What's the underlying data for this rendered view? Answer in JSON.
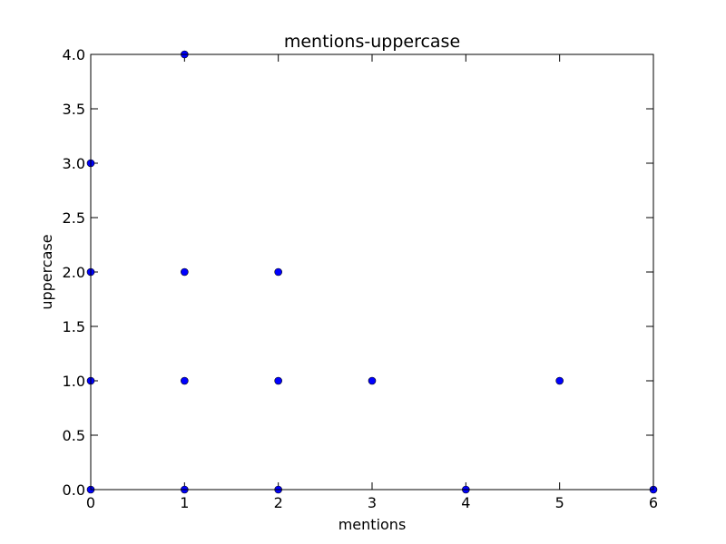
{
  "chart_data": {
    "type": "scatter",
    "title": "mentions-uppercase",
    "xlabel": "mentions",
    "ylabel": "uppercase",
    "xlim": [
      0,
      6
    ],
    "ylim": [
      0,
      4
    ],
    "xticks": [
      "0",
      "1",
      "2",
      "3",
      "4",
      "5",
      "6"
    ],
    "yticks": [
      "0.0",
      "0.5",
      "1.0",
      "1.5",
      "2.0",
      "2.5",
      "3.0",
      "3.5",
      "4.0"
    ],
    "grid": false,
    "legend": "none",
    "marker_color": "#0000ff",
    "marker_edge_color": "#000000",
    "points": [
      {
        "x": 0,
        "y": 0
      },
      {
        "x": 0,
        "y": 1
      },
      {
        "x": 0,
        "y": 2
      },
      {
        "x": 0,
        "y": 3
      },
      {
        "x": 1,
        "y": 0
      },
      {
        "x": 1,
        "y": 1
      },
      {
        "x": 1,
        "y": 2
      },
      {
        "x": 1,
        "y": 4
      },
      {
        "x": 2,
        "y": 0
      },
      {
        "x": 2,
        "y": 1
      },
      {
        "x": 2,
        "y": 2
      },
      {
        "x": 3,
        "y": 1
      },
      {
        "x": 4,
        "y": 0
      },
      {
        "x": 5,
        "y": 1
      },
      {
        "x": 6,
        "y": 0
      }
    ]
  }
}
